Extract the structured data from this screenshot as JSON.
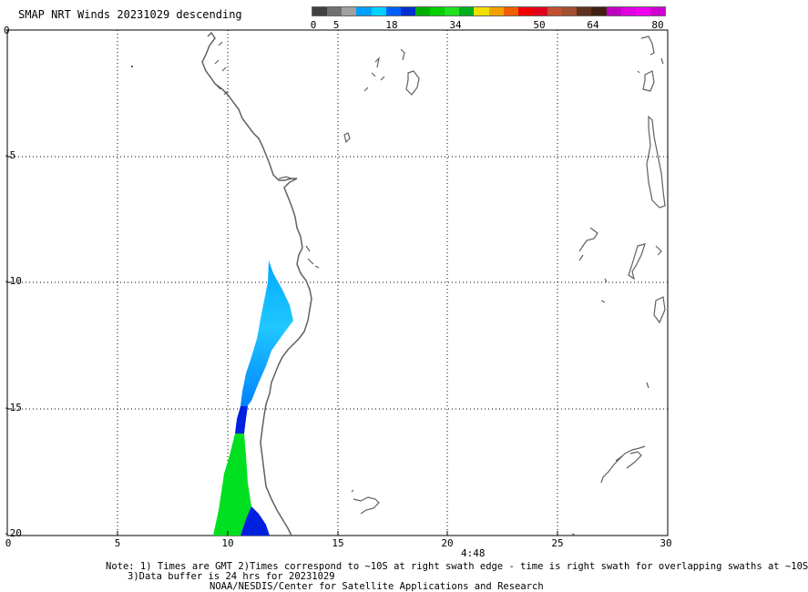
{
  "title": "SMAP NRT Winds  20231029 descending",
  "legend": {
    "ticks": [
      "0",
      "5",
      "18",
      "34",
      "50",
      "64",
      "80"
    ],
    "colors": [
      "#404040",
      "#707070",
      "#a0a0a0",
      "#00a0ff",
      "#00d0ff",
      "#0060ff",
      "#0030d0",
      "#00b000",
      "#00d000",
      "#20e020",
      "#00b020",
      "#f0e000",
      "#f0a000",
      "#f06000",
      "#f00000",
      "#e00020",
      "#c05030",
      "#a05030",
      "#603020",
      "#402010",
      "#c000c0",
      "#e000e0",
      "#f000f0",
      "#d000d0"
    ]
  },
  "axes": {
    "x_ticks": [
      "0",
      "5",
      "10",
      "15",
      "20",
      "25",
      "30"
    ],
    "y_ticks": [
      "0",
      "-5",
      "-10",
      "-15",
      "-20"
    ],
    "x_range": [
      0,
      30
    ],
    "y_range": [
      -20,
      0
    ]
  },
  "time_label": "4:48",
  "notes": {
    "line1": "Note: 1) Times are GMT 2)Times correspond to ~10S at right swath edge - time is right swath for overlapping swaths at ~10S",
    "line2": "3)Data buffer is 24 hrs for 20231029",
    "line3": "NOAA/NESDIS/Center for Satellite Applications and Research"
  }
}
